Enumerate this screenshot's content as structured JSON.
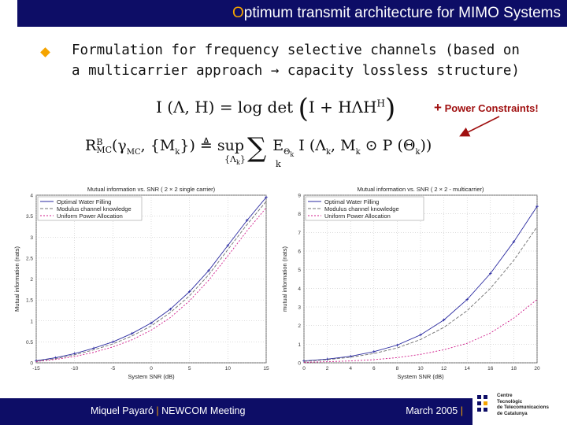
{
  "header": {
    "title_first_letter": "O",
    "title_rest": "ptimum transmit architecture for MIMO Systems"
  },
  "bullet": {
    "line1": "Formulation for frequency selective channels (based on",
    "line2": "a multicarrier approach → capacity lossless structure)"
  },
  "equations": {
    "eq1": {
      "lhs": "I (Λ, H) = log det",
      "inner": "I + HΛH",
      "sup": "H"
    },
    "eq2": {
      "lhs": "R",
      "lhs_sup": "B",
      "lhs_sub": "MC",
      "args": "(γ",
      "args_sub": "MC",
      "args2": ", {M",
      "args2_sub": "k",
      "args3": "}) ≜ sup",
      "sup_sub": "{Λ",
      "sup_sub_sub": "k",
      "sup_sub_end": "}",
      "sum": "∑",
      "sum_sub": "k",
      "body": "E",
      "body_sub": "Θ",
      "body_sub_sub": "k",
      "body2": " I (Λ",
      "body2_sub": "k",
      "body3": ", M",
      "body3_sub": "k",
      "body4": " ⊙ P (Θ",
      "body4_sub": "k",
      "body5": "))"
    }
  },
  "annotation": {
    "plus": "+",
    "text": "Power Constraints!"
  },
  "plot_left": {
    "title": "Mutual information vs. SNR ( 2 × 2 single carrier)",
    "xlabel": "System SNR (dB)",
    "ylabel": "Mutual information (nats)",
    "xticks": [
      "-15",
      "-10",
      "-5",
      "0",
      "5",
      "10",
      "15"
    ],
    "yticks": [
      "0",
      "0.5",
      "1",
      "1.5",
      "2",
      "2.5",
      "3",
      "3.5",
      "4"
    ],
    "legend": [
      "Optimal Water Filling",
      "Modulus channel knowledge",
      "Uniform Power Allocation"
    ]
  },
  "plot_right": {
    "title": "Mutual information vs. SNR ( 2 × 2 - multicarrier)",
    "xlabel": "System SNR (dB)",
    "ylabel": "mutual information (nats)",
    "xticks": [
      "0",
      "2",
      "4",
      "6",
      "8",
      "10",
      "12",
      "14",
      "16",
      "18",
      "20"
    ],
    "yticks": [
      "0",
      "1",
      "2",
      "3",
      "4",
      "5",
      "6",
      "7",
      "8",
      "9"
    ],
    "legend": [
      "Optimal Water Filling",
      "Modulus channel knowledge",
      "Uniform Power Allocation"
    ]
  },
  "chart_data": [
    {
      "type": "line",
      "title": "Mutual information vs. SNR ( 2 × 2 single carrier)",
      "xlabel": "System SNR (dB)",
      "ylabel": "Mutual information (nats)",
      "xlim": [
        -15,
        15
      ],
      "ylim": [
        0,
        4
      ],
      "x": [
        -15,
        -12.5,
        -10,
        -7.5,
        -5,
        -2.5,
        0,
        2.5,
        5,
        7.5,
        10,
        12.5,
        15
      ],
      "series": [
        {
          "name": "Optimal Water Filling",
          "color": "#2a2aa0",
          "dash": "",
          "markers": true,
          "values": [
            0.05,
            0.12,
            0.22,
            0.35,
            0.5,
            0.7,
            0.95,
            1.28,
            1.7,
            2.2,
            2.8,
            3.4,
            3.95
          ]
        },
        {
          "name": "Modulus channel knowledge",
          "color": "#707070",
          "dash": "4,2",
          "markers": false,
          "values": [
            0.04,
            0.1,
            0.19,
            0.31,
            0.45,
            0.64,
            0.88,
            1.2,
            1.6,
            2.1,
            2.7,
            3.3,
            3.85
          ]
        },
        {
          "name": "Uniform Power Allocation",
          "color": "#d01c8b",
          "dash": "2,2",
          "markers": false,
          "values": [
            0.03,
            0.08,
            0.15,
            0.25,
            0.38,
            0.55,
            0.78,
            1.08,
            1.48,
            1.97,
            2.55,
            3.15,
            3.7
          ]
        }
      ]
    },
    {
      "type": "line",
      "title": "Mutual information vs. SNR ( 2 × 2 - multicarrier)",
      "xlabel": "System SNR (dB)",
      "ylabel": "mutual information (nats)",
      "xlim": [
        0,
        20
      ],
      "ylim": [
        0,
        9
      ],
      "x": [
        0,
        2,
        4,
        6,
        8,
        10,
        12,
        14,
        16,
        18,
        20
      ],
      "series": [
        {
          "name": "Optimal Water Filling",
          "color": "#2a2aa0",
          "dash": "",
          "markers": true,
          "values": [
            0.1,
            0.2,
            0.35,
            0.6,
            0.95,
            1.5,
            2.3,
            3.4,
            4.8,
            6.5,
            8.4
          ]
        },
        {
          "name": "Modulus channel knowledge",
          "color": "#707070",
          "dash": "4,2",
          "markers": false,
          "values": [
            0.08,
            0.17,
            0.3,
            0.5,
            0.8,
            1.25,
            1.9,
            2.8,
            4.0,
            5.5,
            7.3
          ]
        },
        {
          "name": "Uniform Power Allocation",
          "color": "#d01c8b",
          "dash": "2,2",
          "markers": false,
          "values": [
            0.03,
            0.06,
            0.1,
            0.17,
            0.28,
            0.45,
            0.7,
            1.05,
            1.6,
            2.4,
            3.4
          ]
        }
      ]
    }
  ],
  "footer": {
    "left": "Miquel Payaró",
    "sep1": "|",
    "left2": "NEWCOM Meeting",
    "right": "March 2005",
    "sep2": "|"
  },
  "logo": {
    "line1": "Centre",
    "line2": "Tecnològic",
    "line3": "de Telecomunicacions",
    "line4": "de Catalunya"
  },
  "colors": {
    "navy": "#0d0d66",
    "orange": "#f5a400",
    "annotation": "#a01010"
  }
}
